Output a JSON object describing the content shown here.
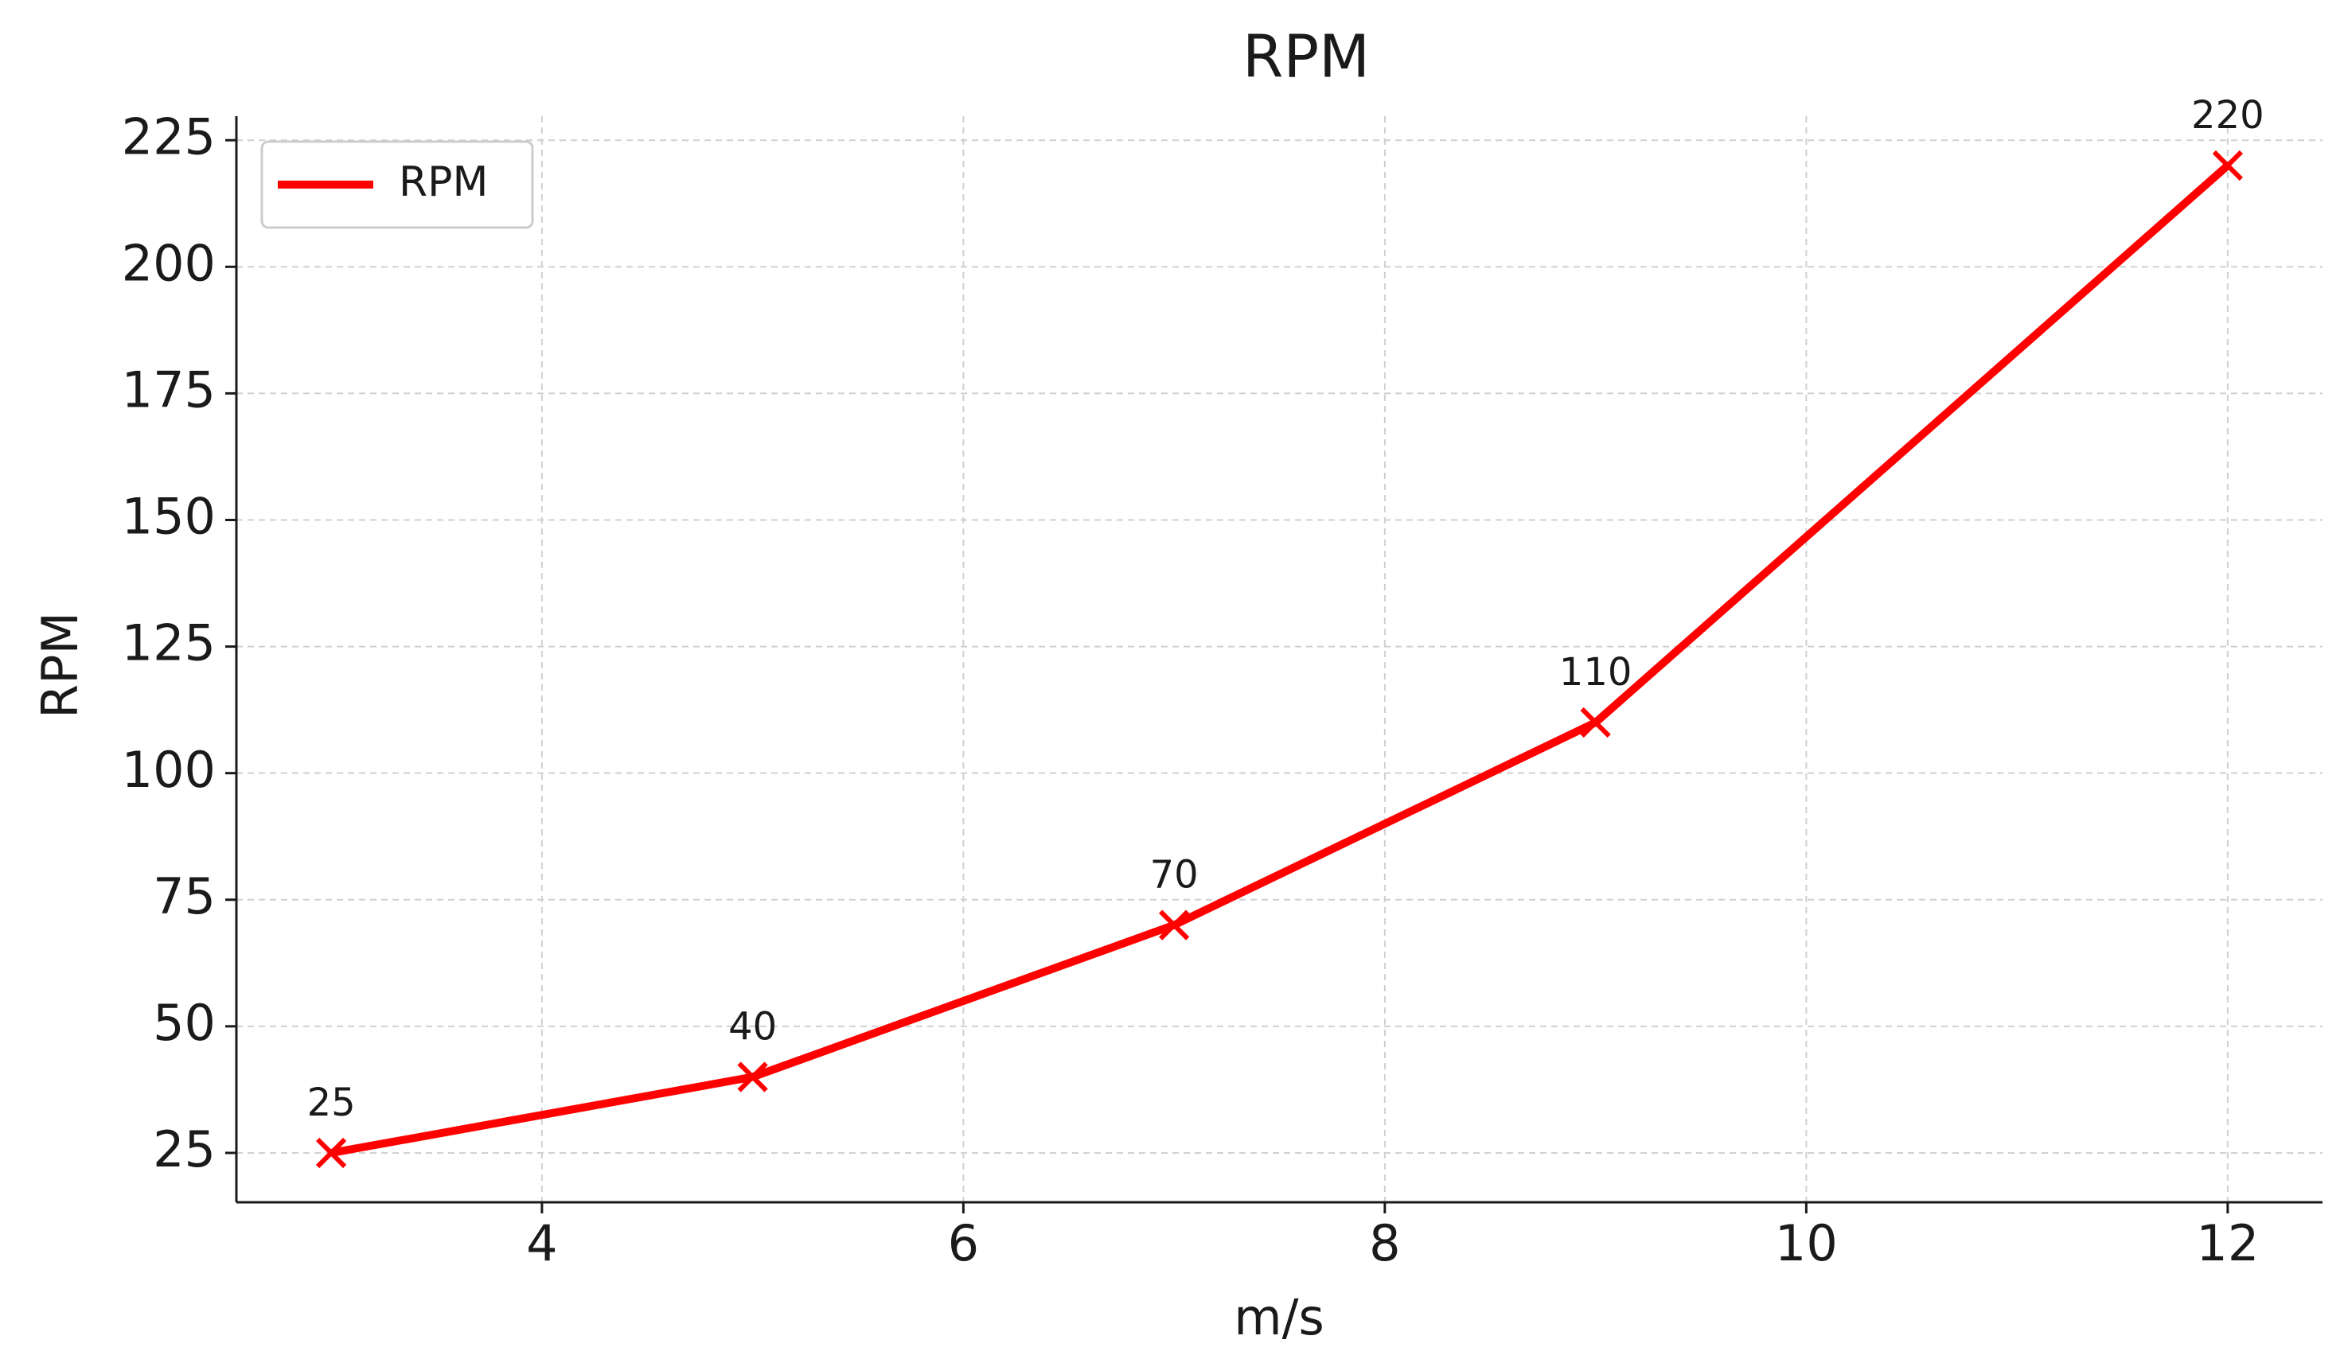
{
  "chart_data": {
    "type": "line",
    "title": "RPM",
    "xlabel": "m/s",
    "ylabel": "RPM",
    "x": [
      3,
      5,
      7,
      9,
      12
    ],
    "series": [
      {
        "name": "RPM",
        "color": "#ff0000",
        "values": [
          25,
          40,
          70,
          110,
          220
        ]
      }
    ],
    "xlim": [
      2.55,
      12.45
    ],
    "xticks": [
      4,
      6,
      8,
      10,
      12
    ],
    "ylim": [
      15.25,
      229.75
    ],
    "yticks": [
      25,
      50,
      75,
      100,
      125,
      150,
      175,
      200,
      225
    ],
    "grid": true,
    "legend": "upper left",
    "marker": "x",
    "data_labels": true
  }
}
